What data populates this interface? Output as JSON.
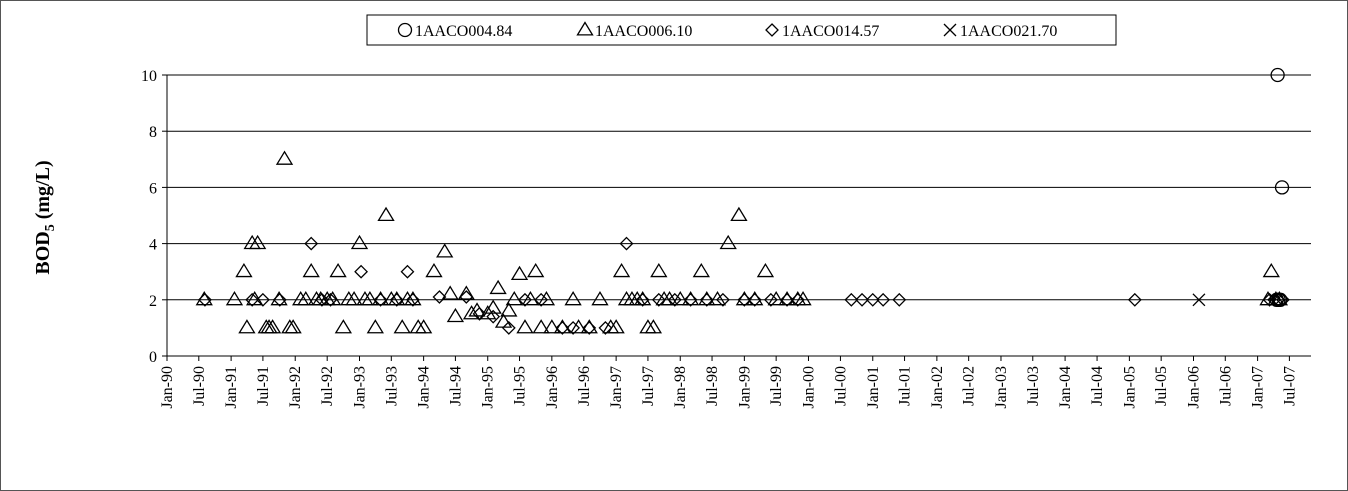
{
  "chart_data": {
    "type": "scatter",
    "title": "",
    "xlabel": "",
    "ylabel": "BOD",
    "ylabel_sub": "5",
    "ylabel_unit": " (mg/L)",
    "ylim": [
      0,
      10
    ],
    "yticks": [
      0,
      2,
      4,
      6,
      8,
      10
    ],
    "xlim": [
      "1990-01-01",
      "2007-11-01"
    ],
    "xticks": [
      "Jan-90",
      "Jul-90",
      "Jan-91",
      "Jul-91",
      "Jan-92",
      "Jul-92",
      "Jan-93",
      "Jul-93",
      "Jan-94",
      "Jul-94",
      "Jan-95",
      "Jul-95",
      "Jan-96",
      "Jul-96",
      "Jan-97",
      "Jul-97",
      "Jan-98",
      "Jul-98",
      "Jan-99",
      "Jul-99",
      "Jan-00",
      "Jul-00",
      "Jan-01",
      "Jul-01",
      "Jan-02",
      "Jul-02",
      "Jan-03",
      "Jul-03",
      "Jan-04",
      "Jul-04",
      "Jan-05",
      "Jul-05",
      "Jan-06",
      "Jul-06",
      "Jan-07",
      "Jul-07"
    ],
    "grid": "horizontal",
    "legend_position": "top",
    "series": [
      {
        "name": "1AACO004.84",
        "marker": "circle",
        "points": [
          [
            "2007-04-25",
            10
          ],
          [
            "2007-05-20",
            6
          ],
          [
            "2007-05-10",
            2
          ],
          [
            "2007-04-20",
            2
          ],
          [
            "2007-05-01",
            2
          ]
        ]
      },
      {
        "name": "1AACO006.10",
        "marker": "triangle",
        "points": [
          [
            "1990-08-01",
            2
          ],
          [
            "1991-01-20",
            2
          ],
          [
            "1991-03-15",
            3
          ],
          [
            "1991-04-01",
            1
          ],
          [
            "1991-05-01",
            4
          ],
          [
            "1991-05-15",
            2
          ],
          [
            "1991-06-01",
            4
          ],
          [
            "1991-07-20",
            1
          ],
          [
            "1991-08-05",
            1
          ],
          [
            "1991-08-25",
            1
          ],
          [
            "1991-10-01",
            2
          ],
          [
            "1991-11-01",
            7
          ],
          [
            "1991-12-01",
            1
          ],
          [
            "1991-12-20",
            1
          ],
          [
            "1992-02-01",
            2
          ],
          [
            "1992-03-01",
            2
          ],
          [
            "1992-04-01",
            3
          ],
          [
            "1992-05-01",
            2
          ],
          [
            "1992-05-25",
            2
          ],
          [
            "1992-07-01",
            2
          ],
          [
            "1992-08-01",
            2
          ],
          [
            "1992-09-01",
            3
          ],
          [
            "1992-10-01",
            1
          ],
          [
            "1992-11-01",
            2
          ],
          [
            "1992-12-01",
            2
          ],
          [
            "1993-01-01",
            4
          ],
          [
            "1993-02-01",
            2
          ],
          [
            "1993-03-01",
            2
          ],
          [
            "1993-04-01",
            1
          ],
          [
            "1993-05-01",
            2
          ],
          [
            "1993-06-01",
            5
          ],
          [
            "1993-07-01",
            2
          ],
          [
            "1993-08-01",
            2
          ],
          [
            "1993-09-01",
            1
          ],
          [
            "1993-10-01",
            2
          ],
          [
            "1993-11-01",
            2
          ],
          [
            "1993-12-01",
            1
          ],
          [
            "1994-01-01",
            1
          ],
          [
            "1994-03-01",
            3
          ],
          [
            "1994-05-01",
            3.7
          ],
          [
            "1994-06-01",
            2.2
          ],
          [
            "1994-07-01",
            1.4
          ],
          [
            "1994-09-01",
            2.2
          ],
          [
            "1994-10-01",
            1.5
          ],
          [
            "1994-11-01",
            1.6
          ],
          [
            "1995-01-01",
            1.5
          ],
          [
            "1995-02-01",
            1.7
          ],
          [
            "1995-03-01",
            2.4
          ],
          [
            "1995-04-01",
            1.2
          ],
          [
            "1995-05-01",
            1.6
          ],
          [
            "1995-06-01",
            2
          ],
          [
            "1995-07-01",
            2.9
          ],
          [
            "1995-08-01",
            1
          ],
          [
            "1995-09-01",
            2
          ],
          [
            "1995-10-01",
            3
          ],
          [
            "1995-11-01",
            1
          ],
          [
            "1995-12-01",
            2
          ],
          [
            "1996-01-01",
            1
          ],
          [
            "1996-03-01",
            1
          ],
          [
            "1996-05-01",
            2
          ],
          [
            "1996-06-01",
            1
          ],
          [
            "1996-08-01",
            1
          ],
          [
            "1996-10-01",
            2
          ],
          [
            "1996-12-01",
            1
          ],
          [
            "1997-01-01",
            1
          ],
          [
            "1997-02-01",
            3
          ],
          [
            "1997-03-01",
            2
          ],
          [
            "1997-04-01",
            2
          ],
          [
            "1997-05-01",
            2
          ],
          [
            "1997-06-01",
            2
          ],
          [
            "1997-07-01",
            1
          ],
          [
            "1997-08-01",
            1
          ],
          [
            "1997-09-01",
            3
          ],
          [
            "1997-10-01",
            2
          ],
          [
            "1997-11-01",
            2
          ],
          [
            "1998-01-01",
            2
          ],
          [
            "1998-03-01",
            2
          ],
          [
            "1998-05-01",
            3
          ],
          [
            "1998-06-01",
            2
          ],
          [
            "1998-08-01",
            2
          ],
          [
            "1998-10-01",
            4
          ],
          [
            "1998-12-01",
            5
          ],
          [
            "1999-01-01",
            2
          ],
          [
            "1999-03-01",
            2
          ],
          [
            "1999-05-01",
            3
          ],
          [
            "1999-07-01",
            2
          ],
          [
            "1999-09-01",
            2
          ],
          [
            "1999-11-01",
            2
          ],
          [
            "1999-12-01",
            2
          ],
          [
            "2007-03-01",
            2
          ],
          [
            "2007-03-20",
            3
          ],
          [
            "2007-04-15",
            2
          ],
          [
            "2007-05-05",
            2
          ]
        ]
      },
      {
        "name": "1AACO014.57",
        "marker": "diamond",
        "points": [
          [
            "1990-08-05",
            2
          ],
          [
            "1991-05-01",
            2
          ],
          [
            "1991-07-01",
            2
          ],
          [
            "1991-10-05",
            2
          ],
          [
            "1992-04-01",
            4
          ],
          [
            "1992-06-01",
            2
          ],
          [
            "1992-07-20",
            2
          ],
          [
            "1993-01-10",
            3
          ],
          [
            "1993-05-01",
            2
          ],
          [
            "1993-08-01",
            2
          ],
          [
            "1993-10-01",
            3
          ],
          [
            "1993-11-01",
            2
          ],
          [
            "1994-04-01",
            2.1
          ],
          [
            "1994-09-01",
            2.1
          ],
          [
            "1994-11-15",
            1.5
          ],
          [
            "1995-02-01",
            1.4
          ],
          [
            "1995-05-01",
            1
          ],
          [
            "1995-08-01",
            2
          ],
          [
            "1995-11-01",
            2
          ],
          [
            "1996-03-01",
            1
          ],
          [
            "1996-05-01",
            1
          ],
          [
            "1996-08-01",
            1
          ],
          [
            "1996-11-01",
            1
          ],
          [
            "1997-03-01",
            4
          ],
          [
            "1997-06-01",
            2
          ],
          [
            "1997-09-01",
            2
          ],
          [
            "1997-12-01",
            2
          ],
          [
            "1998-03-01",
            2
          ],
          [
            "1998-06-01",
            2
          ],
          [
            "1998-09-01",
            2
          ],
          [
            "1999-01-01",
            2
          ],
          [
            "1999-03-01",
            2
          ],
          [
            "1999-06-01",
            2
          ],
          [
            "1999-09-01",
            2
          ],
          [
            "1999-11-01",
            2
          ],
          [
            "2000-09-01",
            2
          ],
          [
            "2000-11-01",
            2
          ],
          [
            "2001-01-01",
            2
          ],
          [
            "2001-03-01",
            2
          ],
          [
            "2001-06-01",
            2
          ],
          [
            "2005-02-01",
            2
          ],
          [
            "2007-03-10",
            2
          ],
          [
            "2007-04-05",
            2
          ],
          [
            "2007-04-28",
            2
          ],
          [
            "2007-05-25",
            2
          ]
        ]
      },
      {
        "name": "1AACO021.70",
        "marker": "x",
        "points": [
          [
            "2006-02-01",
            2
          ]
        ]
      }
    ]
  },
  "colors": {
    "marker": "#000000",
    "grid": "#000000",
    "background": "#ffffff"
  }
}
